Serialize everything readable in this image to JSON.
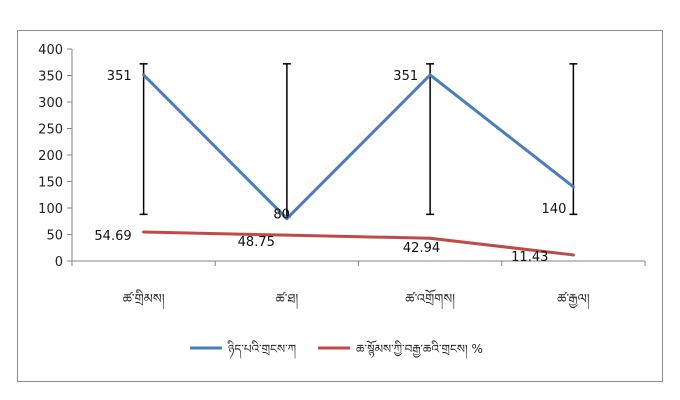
{
  "chart_data": {
    "type": "line",
    "categories": [
      "ཚ་གྲིམས།",
      "ཚ་ཐ།",
      "ཚ་འགྲོགས།",
      "ཚ་རྒྱལ།"
    ],
    "series": [
      {
        "name": "ཉིད་པའི་གྲངས་ཀ",
        "values": [
          351,
          80,
          351,
          140
        ],
        "labels": [
          "351",
          "80",
          "351",
          "140"
        ],
        "color": "#4a7ebb"
      },
      {
        "name": "ཆ་སྙོམས་ཀྱི་བརྒྱ་ཆའི་གྲངས། %",
        "values": [
          54.69,
          48.75,
          42.94,
          11.43
        ],
        "labels": [
          "54.69",
          "48.75",
          "42.94",
          "11.43"
        ],
        "color": "#be4b48"
      }
    ],
    "error_bars": [
      {
        "low": 88,
        "high": 372
      },
      {
        "low": 84,
        "high": 372
      },
      {
        "low": 88,
        "high": 372
      },
      {
        "low": 88,
        "high": 372
      }
    ],
    "y_ticks": [
      "0",
      "50",
      "100",
      "150",
      "200",
      "250",
      "300",
      "350",
      "400"
    ],
    "ylim": [
      0,
      400
    ],
    "grid": false,
    "legend_position": "bottom",
    "colors": {
      "axis": "#868686",
      "error_bar": "#000000"
    }
  }
}
